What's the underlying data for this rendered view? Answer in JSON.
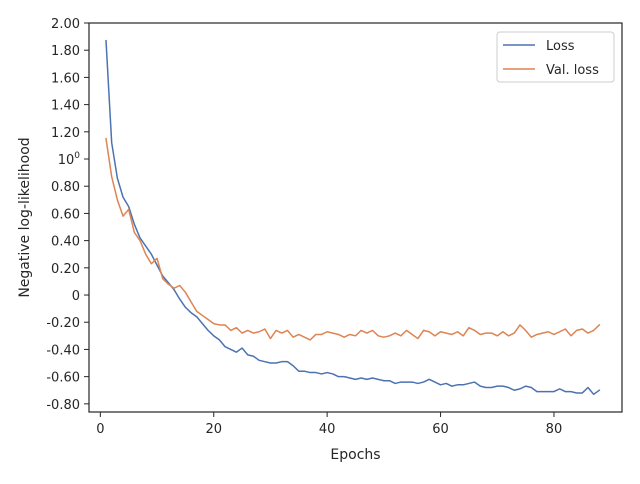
{
  "chart_data": {
    "type": "line",
    "title": "",
    "xlabel": "Epochs",
    "ylabel": "Negative log-likelihood",
    "xlim": [
      -2,
      92
    ],
    "ylim": [
      -0.86,
      2.0
    ],
    "x_ticks": [
      {
        "value": 0,
        "label": "0"
      },
      {
        "value": 20,
        "label": "20"
      },
      {
        "value": 40,
        "label": "40"
      },
      {
        "value": 60,
        "label": "60"
      },
      {
        "value": 80,
        "label": "80"
      }
    ],
    "y_ticks": [
      {
        "value": 2.0,
        "label": "2.00"
      },
      {
        "value": 1.8,
        "label": "1.80"
      },
      {
        "value": 1.6,
        "label": "1.60"
      },
      {
        "value": 1.4,
        "label": "1.40"
      },
      {
        "value": 1.2,
        "label": "1.20"
      },
      {
        "value": 1.0,
        "label": "10",
        "sup": "0"
      },
      {
        "value": 0.8,
        "label": "0.80"
      },
      {
        "value": 0.6,
        "label": "0.60"
      },
      {
        "value": 0.4,
        "label": "0.40"
      },
      {
        "value": 0.2,
        "label": "0.20"
      },
      {
        "value": 0.0,
        "label": "0"
      },
      {
        "value": -0.2,
        "label": "-0.20"
      },
      {
        "value": -0.4,
        "label": "-0.40"
      },
      {
        "value": -0.6,
        "label": "-0.60"
      },
      {
        "value": -0.8,
        "label": "-0.80"
      }
    ],
    "grid": false,
    "legend_position": "top-right",
    "series": [
      {
        "name": "Loss",
        "color": "#4c72b0",
        "x": [
          1,
          2,
          3,
          4,
          5,
          6,
          7,
          8,
          9,
          10,
          11,
          12,
          13,
          14,
          15,
          16,
          17,
          18,
          19,
          20,
          21,
          22,
          23,
          24,
          25,
          26,
          27,
          28,
          29,
          30,
          31,
          32,
          33,
          34,
          35,
          36,
          37,
          38,
          39,
          40,
          41,
          42,
          43,
          44,
          45,
          46,
          47,
          48,
          49,
          50,
          51,
          52,
          53,
          54,
          55,
          56,
          57,
          58,
          59,
          60,
          61,
          62,
          63,
          64,
          65,
          66,
          67,
          68,
          69,
          70,
          71,
          72,
          73,
          74,
          75,
          76,
          77,
          78,
          79,
          80,
          81,
          82,
          83,
          84,
          85,
          86,
          87,
          88
        ],
        "y": [
          1.87,
          1.12,
          0.86,
          0.72,
          0.65,
          0.52,
          0.42,
          0.36,
          0.3,
          0.22,
          0.14,
          0.09,
          0.04,
          -0.03,
          -0.09,
          -0.13,
          -0.16,
          -0.21,
          -0.26,
          -0.3,
          -0.33,
          -0.38,
          -0.4,
          -0.42,
          -0.39,
          -0.44,
          -0.45,
          -0.48,
          -0.49,
          -0.5,
          -0.5,
          -0.49,
          -0.49,
          -0.52,
          -0.56,
          -0.56,
          -0.57,
          -0.57,
          -0.58,
          -0.57,
          -0.58,
          -0.6,
          -0.6,
          -0.61,
          -0.62,
          -0.61,
          -0.62,
          -0.61,
          -0.62,
          -0.63,
          -0.63,
          -0.65,
          -0.64,
          -0.64,
          -0.64,
          -0.65,
          -0.64,
          -0.62,
          -0.64,
          -0.66,
          -0.65,
          -0.67,
          -0.66,
          -0.66,
          -0.65,
          -0.64,
          -0.67,
          -0.68,
          -0.68,
          -0.67,
          -0.67,
          -0.68,
          -0.7,
          -0.69,
          -0.67,
          -0.68,
          -0.71,
          -0.71,
          -0.71,
          -0.71,
          -0.69,
          -0.71,
          -0.71,
          -0.72,
          -0.72,
          -0.68,
          -0.73,
          -0.7
        ]
      },
      {
        "name": "Val. loss",
        "color": "#dd8452",
        "x": [
          1,
          2,
          3,
          4,
          5,
          6,
          7,
          8,
          9,
          10,
          11,
          12,
          13,
          14,
          15,
          16,
          17,
          18,
          19,
          20,
          21,
          22,
          23,
          24,
          25,
          26,
          27,
          28,
          29,
          30,
          31,
          32,
          33,
          34,
          35,
          36,
          37,
          38,
          39,
          40,
          41,
          42,
          43,
          44,
          45,
          46,
          47,
          48,
          49,
          50,
          51,
          52,
          53,
          54,
          55,
          56,
          57,
          58,
          59,
          60,
          61,
          62,
          63,
          64,
          65,
          66,
          67,
          68,
          69,
          70,
          71,
          72,
          73,
          74,
          75,
          76,
          77,
          78,
          79,
          80,
          81,
          82,
          83,
          84,
          85,
          86,
          87,
          88
        ],
        "y": [
          1.15,
          0.87,
          0.7,
          0.58,
          0.63,
          0.46,
          0.4,
          0.3,
          0.23,
          0.27,
          0.12,
          0.08,
          0.05,
          0.07,
          0.02,
          -0.05,
          -0.12,
          -0.15,
          -0.18,
          -0.21,
          -0.22,
          -0.22,
          -0.26,
          -0.24,
          -0.28,
          -0.26,
          -0.28,
          -0.27,
          -0.25,
          -0.32,
          -0.26,
          -0.28,
          -0.26,
          -0.31,
          -0.29,
          -0.31,
          -0.33,
          -0.29,
          -0.29,
          -0.27,
          -0.28,
          -0.29,
          -0.31,
          -0.29,
          -0.3,
          -0.26,
          -0.28,
          -0.26,
          -0.3,
          -0.31,
          -0.3,
          -0.28,
          -0.3,
          -0.26,
          -0.29,
          -0.32,
          -0.26,
          -0.27,
          -0.3,
          -0.27,
          -0.28,
          -0.29,
          -0.27,
          -0.3,
          -0.24,
          -0.26,
          -0.29,
          -0.28,
          -0.28,
          -0.3,
          -0.27,
          -0.3,
          -0.28,
          -0.22,
          -0.26,
          -0.31,
          -0.29,
          -0.28,
          -0.27,
          -0.29,
          -0.27,
          -0.25,
          -0.3,
          -0.26,
          -0.25,
          -0.28,
          -0.26,
          -0.22
        ]
      }
    ]
  }
}
